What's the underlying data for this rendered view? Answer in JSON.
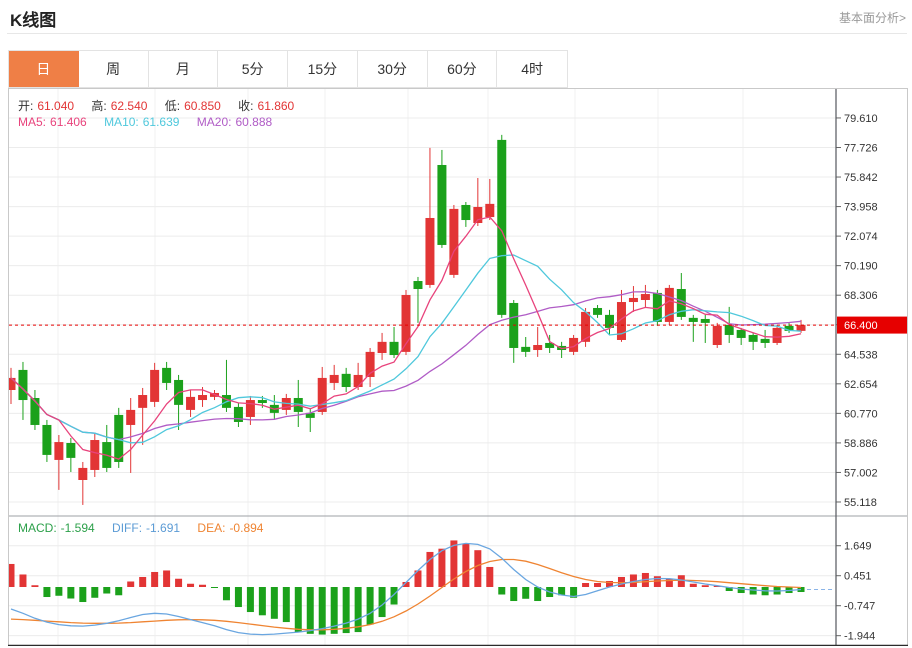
{
  "header": {
    "title": "K线图",
    "link": "基本面分析>"
  },
  "tabs": {
    "items": [
      "日",
      "周",
      "月",
      "5分",
      "15分",
      "30分",
      "60分",
      "4时"
    ],
    "selected_index": 0
  },
  "ohlc_legend": {
    "open_label": "开:",
    "open": "61.040",
    "high_label": "高:",
    "high": "62.540",
    "low_label": "低:",
    "low": "60.850",
    "close_label": "收:",
    "close": "61.860"
  },
  "ma_legend": {
    "ma5_label": "MA5:",
    "ma5": "61.406",
    "ma10_label": "MA10:",
    "ma10": "61.639",
    "ma20_label": "MA20:",
    "ma20": "60.888"
  },
  "macd_legend": {
    "macd_label": "MACD:",
    "macd": "-1.594",
    "diff_label": "DIFF:",
    "diff": "-1.691",
    "dea_label": "DEA:",
    "dea": "-0.894"
  },
  "colors": {
    "up": "#e23535",
    "down": "#1ba11b",
    "ma5": "#e8437c",
    "ma10": "#4fc8dc",
    "ma20": "#b05cc6",
    "diff_line": "#6aa6e0",
    "dea_line": "#ef8432",
    "price_line": "#e60000",
    "price_tag_bg": "#e60000",
    "price_tag_text": "#ffffff",
    "tab_active_bg": "#ef7f46",
    "axis_text": "#333333",
    "grid": "#ececec",
    "frame": "#c9c9c9",
    "axis_line": "#55585e"
  },
  "chart_data": {
    "type": "candlestick+macd",
    "title": "K线图 日K",
    "legend_position": "top-left",
    "grid": true,
    "price_axis_ticks": [
      79.61,
      77.726,
      75.842,
      73.958,
      72.074,
      70.19,
      68.306,
      66.422,
      64.538,
      62.654,
      60.77,
      58.886,
      57.002,
      55.118
    ],
    "price_range_visible": [
      54.3,
      81.5
    ],
    "current_price": 66.4,
    "current_price_label": "66.400",
    "ma_periods": [
      5,
      10,
      20
    ],
    "candles_ohlc": [
      [
        62.26,
        63.67,
        61.37,
        63.03
      ],
      [
        63.54,
        64.05,
        60.35,
        61.62
      ],
      [
        61.75,
        62.26,
        59.71,
        60.03
      ],
      [
        60.03,
        60.35,
        57.67,
        58.12
      ],
      [
        57.8,
        59.39,
        55.89,
        58.94
      ],
      [
        58.88,
        59.2,
        57.03,
        57.93
      ],
      [
        56.52,
        57.67,
        54.93,
        57.29
      ],
      [
        57.16,
        59.52,
        56.71,
        59.07
      ],
      [
        58.94,
        60.03,
        57.03,
        57.29
      ],
      [
        60.67,
        61.12,
        57.29,
        57.67
      ],
      [
        60.03,
        61.75,
        56.97,
        60.99
      ],
      [
        61.12,
        62.39,
        58.76,
        61.94
      ],
      [
        61.5,
        63.99,
        61.18,
        63.54
      ],
      [
        63.67,
        64.05,
        62.26,
        62.71
      ],
      [
        62.9,
        63.22,
        59.71,
        61.31
      ],
      [
        60.99,
        62.26,
        60.54,
        61.82
      ],
      [
        61.62,
        62.45,
        61.18,
        61.94
      ],
      [
        61.82,
        62.26,
        61.62,
        62.07
      ],
      [
        61.94,
        64.18,
        60.86,
        61.12
      ],
      [
        61.18,
        61.43,
        59.9,
        60.22
      ],
      [
        60.54,
        61.88,
        60.03,
        61.62
      ],
      [
        61.62,
        61.88,
        61.12,
        61.43
      ],
      [
        61.31,
        61.94,
        60.35,
        60.8
      ],
      [
        60.99,
        62.01,
        60.67,
        61.75
      ],
      [
        61.75,
        62.9,
        59.9,
        60.86
      ],
      [
        60.8,
        61.12,
        59.58,
        60.48
      ],
      [
        60.86,
        63.73,
        60.67,
        63.03
      ],
      [
        62.71,
        63.86,
        62.26,
        63.22
      ],
      [
        63.29,
        63.67,
        62.13,
        62.45
      ],
      [
        62.45,
        63.99,
        62.26,
        63.22
      ],
      [
        63.09,
        64.94,
        62.45,
        64.69
      ],
      [
        64.62,
        65.9,
        64.18,
        65.33
      ],
      [
        65.33,
        66.28,
        64.3,
        64.49
      ],
      [
        64.69,
        68.64,
        64.49,
        68.32
      ],
      [
        69.21,
        69.47,
        66.54,
        68.7
      ],
      [
        68.96,
        77.7,
        68.77,
        73.23
      ],
      [
        76.61,
        77.57,
        71.32,
        71.51
      ],
      [
        69.6,
        74.06,
        69.41,
        73.81
      ],
      [
        74.06,
        74.25,
        72.66,
        73.1
      ],
      [
        72.91,
        75.78,
        72.72,
        73.93
      ],
      [
        73.29,
        75.72,
        73.1,
        74.13
      ],
      [
        78.21,
        78.53,
        66.86,
        67.05
      ],
      [
        67.81,
        68.0,
        63.99,
        64.94
      ],
      [
        65.01,
        65.64,
        64.37,
        64.69
      ],
      [
        64.81,
        66.28,
        64.37,
        65.13
      ],
      [
        65.26,
        65.77,
        64.62,
        64.94
      ],
      [
        65.07,
        65.33,
        64.3,
        64.81
      ],
      [
        64.69,
        65.77,
        64.49,
        65.58
      ],
      [
        65.33,
        67.49,
        65.01,
        67.24
      ],
      [
        67.49,
        67.68,
        66.86,
        67.05
      ],
      [
        67.05,
        67.37,
        65.77,
        66.22
      ],
      [
        65.45,
        68.64,
        65.33,
        67.87
      ],
      [
        67.87,
        68.89,
        67.24,
        68.13
      ],
      [
        68.0,
        68.96,
        67.49,
        68.38
      ],
      [
        68.45,
        68.64,
        66.35,
        66.6
      ],
      [
        66.6,
        68.96,
        66.41,
        68.77
      ],
      [
        68.7,
        69.72,
        66.73,
        66.92
      ],
      [
        66.86,
        67.05,
        65.33,
        66.6
      ],
      [
        66.79,
        67.05,
        65.26,
        66.54
      ],
      [
        65.13,
        66.54,
        64.94,
        66.35
      ],
      [
        66.41,
        67.56,
        65.26,
        65.77
      ],
      [
        66.09,
        66.22,
        65.13,
        65.58
      ],
      [
        65.77,
        65.9,
        64.81,
        65.33
      ],
      [
        65.52,
        66.09,
        64.94,
        65.26
      ],
      [
        65.26,
        66.41,
        65.13,
        66.22
      ],
      [
        66.35,
        66.54,
        65.9,
        66.03
      ],
      [
        66.03,
        66.73,
        65.9,
        66.4
      ]
    ],
    "macd_axis_ticks": [
      1.649,
      0.451,
      -0.747,
      -1.944
    ],
    "macd_histogram": [
      0.92,
      0.5,
      0.07,
      -0.4,
      -0.35,
      -0.46,
      -0.6,
      -0.43,
      -0.26,
      -0.33,
      0.22,
      0.4,
      0.6,
      0.66,
      0.33,
      0.13,
      0.09,
      -0.03,
      -0.53,
      -0.8,
      -1.0,
      -1.13,
      -1.27,
      -1.4,
      -1.8,
      -1.87,
      -1.9,
      -1.87,
      -1.84,
      -1.8,
      -1.5,
      -1.2,
      -0.7,
      0.2,
      0.66,
      1.4,
      1.53,
      1.86,
      1.73,
      1.47,
      0.8,
      -0.3,
      -0.56,
      -0.47,
      -0.56,
      -0.4,
      -0.33,
      -0.43,
      0.16,
      0.16,
      0.24,
      0.4,
      0.5,
      0.56,
      0.43,
      0.33,
      0.47,
      0.13,
      0.07,
      0.04,
      -0.16,
      -0.24,
      -0.3,
      -0.33,
      -0.3,
      -0.24,
      -0.2
    ],
    "diff_line": [
      -0.88,
      -1.05,
      -1.25,
      -1.4,
      -1.5,
      -1.55,
      -1.56,
      -1.52,
      -1.45,
      -1.35,
      -1.22,
      -1.1,
      -1.05,
      -1.08,
      -1.18,
      -1.3,
      -1.42,
      -1.55,
      -1.7,
      -1.82,
      -1.88,
      -1.9,
      -1.88,
      -1.84,
      -1.8,
      -1.74,
      -1.66,
      -1.56,
      -1.44,
      -1.28,
      -1.05,
      -0.72,
      -0.3,
      0.18,
      0.66,
      1.1,
      1.45,
      1.66,
      1.74,
      1.7,
      1.52,
      1.15,
      0.7,
      0.3,
      0.0,
      -0.2,
      -0.32,
      -0.38,
      -0.3,
      -0.15,
      0.0,
      0.12,
      0.22,
      0.3,
      0.34,
      0.33,
      0.28,
      0.2,
      0.12,
      0.05,
      -0.02,
      -0.08,
      -0.12,
      -0.15,
      -0.16,
      -0.14,
      -0.1
    ],
    "dea_line": [
      -1.28,
      -1.3,
      -1.33,
      -1.36,
      -1.39,
      -1.42,
      -1.44,
      -1.45,
      -1.45,
      -1.44,
      -1.42,
      -1.39,
      -1.36,
      -1.33,
      -1.31,
      -1.3,
      -1.31,
      -1.33,
      -1.37,
      -1.42,
      -1.48,
      -1.54,
      -1.6,
      -1.65,
      -1.69,
      -1.71,
      -1.71,
      -1.69,
      -1.65,
      -1.59,
      -1.5,
      -1.37,
      -1.19,
      -0.96,
      -0.68,
      -0.36,
      -0.02,
      0.32,
      0.62,
      0.86,
      1.02,
      1.1,
      1.1,
      1.03,
      0.9,
      0.74,
      0.57,
      0.42,
      0.3,
      0.22,
      0.18,
      0.17,
      0.18,
      0.21,
      0.24,
      0.26,
      0.27,
      0.26,
      0.24,
      0.21,
      0.17,
      0.13,
      0.09,
      0.05,
      0.02,
      0.0,
      -0.02
    ]
  }
}
